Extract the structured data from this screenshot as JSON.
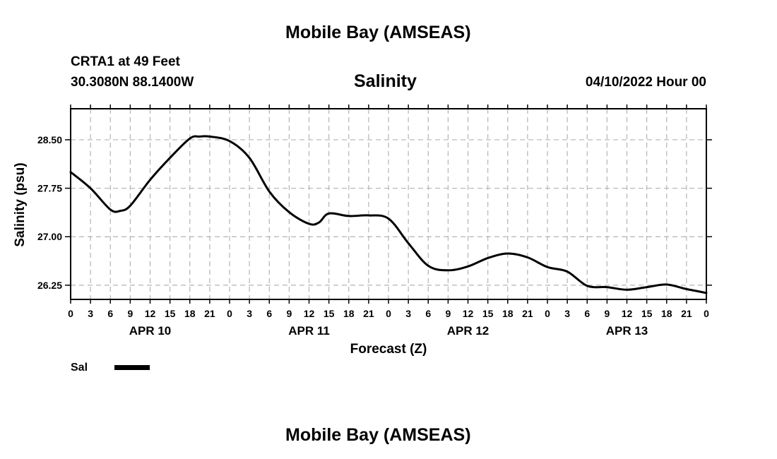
{
  "header": {
    "title": "Mobile Bay (AMSEAS)",
    "station": "CRTA1 at 49 Feet",
    "coords": "30.3080N  88.1400W",
    "variable": "Salinity",
    "datetime": "04/10/2022 Hour 00"
  },
  "footer": {
    "title": "Mobile Bay (AMSEAS)"
  },
  "chart_data": {
    "type": "line",
    "title": "Salinity",
    "xlabel": "Forecast (Z)",
    "ylabel": "Salinity (psu)",
    "ylim": [
      26.03,
      28.98
    ],
    "xlim": [
      0,
      96
    ],
    "yticks": [
      26.25,
      27.0,
      27.75,
      28.5
    ],
    "ytick_labels": [
      "26.25",
      "27.00",
      "27.75",
      "28.50"
    ],
    "xticks": [
      0,
      3,
      6,
      9,
      12,
      15,
      18,
      21,
      24,
      27,
      30,
      33,
      36,
      39,
      42,
      45,
      48,
      51,
      54,
      57,
      60,
      63,
      66,
      69,
      72,
      75,
      78,
      81,
      84,
      87,
      90,
      93,
      96
    ],
    "xtick_labels": [
      "0",
      "3",
      "6",
      "9",
      "12",
      "15",
      "18",
      "21",
      "0",
      "3",
      "6",
      "9",
      "12",
      "15",
      "18",
      "21",
      "0",
      "3",
      "6",
      "9",
      "12",
      "15",
      "18",
      "21",
      "0",
      "3",
      "6",
      "9",
      "12",
      "15",
      "18",
      "21",
      "0"
    ],
    "day_labels": [
      {
        "label": "APR 10",
        "x": 12
      },
      {
        "label": "APR 11",
        "x": 36
      },
      {
        "label": "APR 12",
        "x": 60
      },
      {
        "label": "APR 13",
        "x": 84
      }
    ],
    "grid": true,
    "legend": "bottom-left",
    "series": [
      {
        "name": "Sal",
        "color": "#000000",
        "x": [
          0,
          3,
          6,
          7.5,
          9,
          12,
          15,
          18,
          19.5,
          21,
          24,
          27,
          30,
          33,
          36,
          37.5,
          39,
          42,
          45,
          48,
          51,
          54,
          57,
          60,
          63,
          66,
          69,
          72,
          75,
          78,
          81,
          84,
          87,
          90,
          93,
          96
        ],
        "y": [
          28.0,
          27.75,
          27.42,
          27.4,
          27.48,
          27.88,
          28.22,
          28.52,
          28.55,
          28.55,
          28.48,
          28.22,
          27.7,
          27.38,
          27.2,
          27.22,
          27.36,
          27.32,
          27.33,
          27.28,
          26.9,
          26.55,
          26.48,
          26.54,
          26.67,
          26.74,
          26.68,
          26.53,
          26.46,
          26.24,
          26.22,
          26.18,
          26.22,
          26.26,
          26.19,
          26.13
        ]
      }
    ]
  }
}
